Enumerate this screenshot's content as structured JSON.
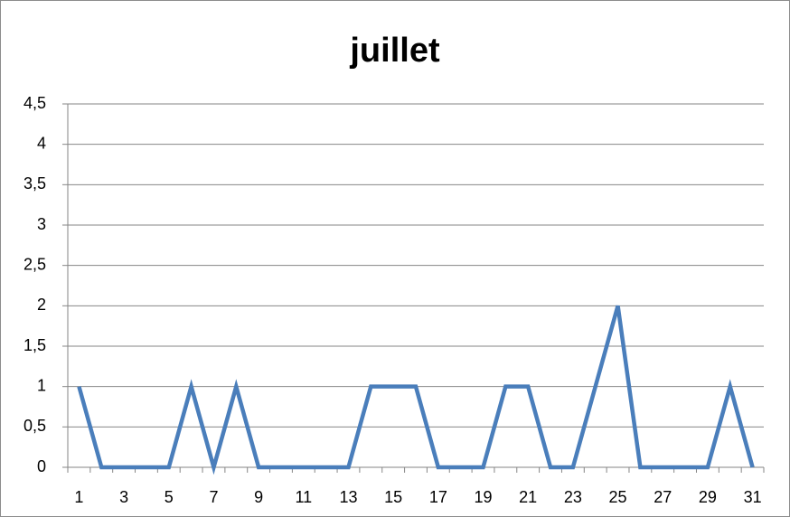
{
  "chart_data": {
    "type": "line",
    "title": "juillet",
    "categories": [
      "1",
      null,
      "3",
      null,
      "5",
      null,
      "7",
      null,
      "9",
      null,
      "11",
      null,
      "13",
      null,
      "15",
      null,
      "17",
      null,
      "19",
      null,
      "21",
      null,
      "23",
      null,
      "25",
      null,
      "27",
      null,
      "29",
      null,
      "31"
    ],
    "series": [
      {
        "name": "juillet",
        "color": "#4a7ebb",
        "values": [
          1,
          0,
          0,
          0,
          0,
          1,
          0,
          1,
          0,
          0,
          0,
          0,
          0,
          1,
          1,
          1,
          0,
          0,
          0,
          1,
          1,
          0,
          0,
          1,
          2,
          0,
          0,
          0,
          0,
          1,
          0
        ]
      }
    ],
    "ylim": [
      0,
      4.5
    ],
    "yticks": [
      0,
      {
        "value": 0.5,
        "label": "0,5"
      },
      1,
      {
        "value": 1.5,
        "label": "1,5"
      },
      2,
      {
        "value": 2.5,
        "label": "2,5"
      },
      3,
      {
        "value": 3.5,
        "label": "3,5"
      },
      4,
      {
        "value": 4.5,
        "label": "4,5"
      }
    ],
    "grid": true
  }
}
